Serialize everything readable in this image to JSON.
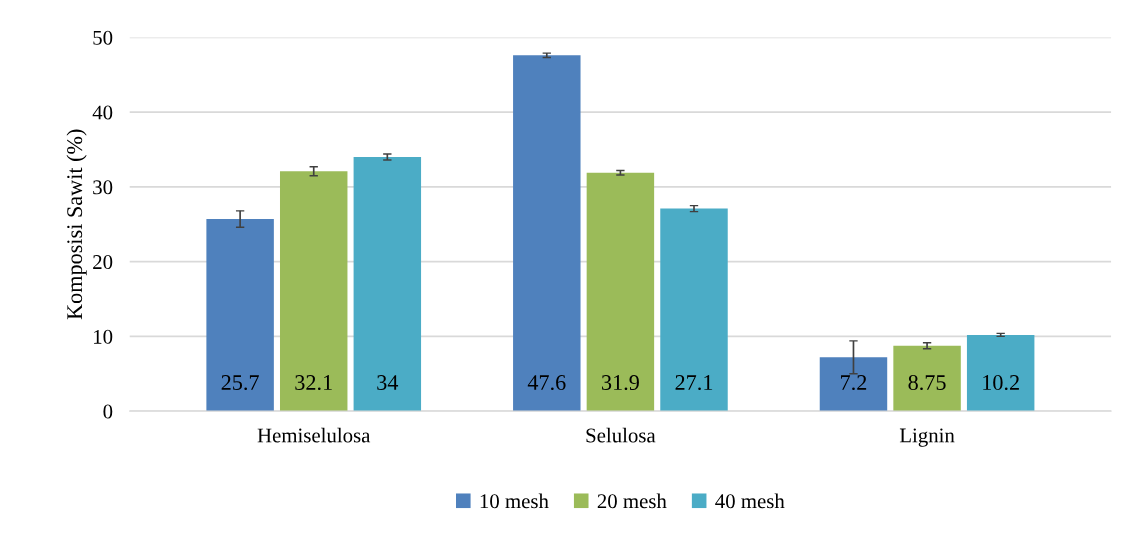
{
  "chart_data": {
    "type": "bar",
    "ylabel": "Komposisi Sawit (%)",
    "categories": [
      "Hemiselulosa",
      "Selulosa",
      "Lignin"
    ],
    "series": [
      {
        "name": "10 mesh",
        "color": "#4f81bd",
        "values": [
          25.7,
          47.6,
          7.2
        ],
        "errors": [
          1.1,
          0.3,
          2.2
        ]
      },
      {
        "name": "20 mesh",
        "color": "#9bbb59",
        "values": [
          32.1,
          31.9,
          8.75
        ],
        "errors": [
          0.6,
          0.3,
          0.4
        ]
      },
      {
        "name": "40 mesh",
        "color": "#4bacc6",
        "values": [
          34,
          27.1,
          10.2
        ],
        "errors": [
          0.4,
          0.4,
          0.2
        ]
      }
    ],
    "ylim": [
      0,
      50
    ],
    "yticks": [
      0,
      10,
      20,
      30,
      40,
      50
    ],
    "grid": "y",
    "legend": "bottom",
    "data_labels": true
  }
}
